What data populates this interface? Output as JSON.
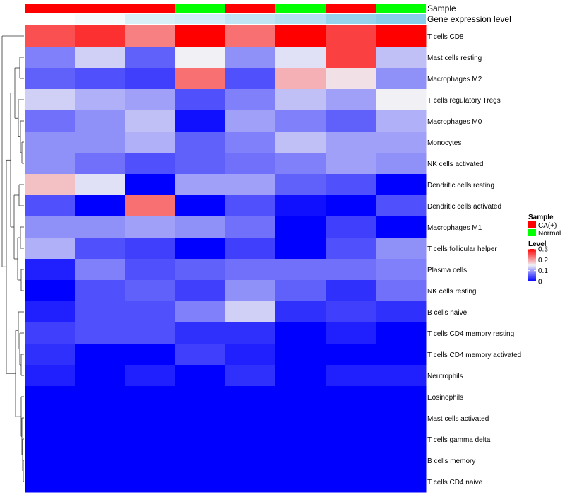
{
  "chart_data": {
    "type": "heatmap",
    "annotation_labels": [
      "Sample",
      "Gene expression level"
    ],
    "sample_groups": [
      "CA(+)",
      "CA(+)",
      "CA(+)",
      "Normal",
      "CA(+)",
      "Normal",
      "CA(+)",
      "Normal"
    ],
    "gene_expression_level": [
      0.0,
      0.04,
      0.15,
      0.18,
      0.25,
      0.3,
      0.42,
      0.48
    ],
    "rows": [
      "T cells CD8",
      "Mast cells resting",
      "Macrophages M2",
      "T cells regulatory  Tregs",
      "Macrophages M0",
      "Monocytes",
      "NK cells activated",
      "Dendritic cells resting",
      "Dendritic cells activated",
      "Macrophages M1",
      "T cells follicular helper",
      "Plasma cells",
      "NK cells resting",
      "B cells naive",
      "T cells CD4 memory resting",
      "T cells CD4 memory activated",
      "Neutrophils",
      "Eosinophils",
      "Mast cells activated",
      "T cells gamma delta",
      "B cells memory",
      "T cells CD4 naive"
    ],
    "values": [
      [
        0.25,
        0.27,
        0.22,
        0.3,
        0.23,
        0.3,
        0.26,
        0.3
      ],
      [
        0.08,
        0.13,
        0.06,
        0.15,
        0.09,
        0.14,
        0.26,
        0.12
      ],
      [
        0.06,
        0.05,
        0.04,
        0.23,
        0.05,
        0.19,
        0.16,
        0.09
      ],
      [
        0.13,
        0.11,
        0.1,
        0.05,
        0.08,
        0.12,
        0.1,
        0.15
      ],
      [
        0.07,
        0.09,
        0.12,
        0.01,
        0.1,
        0.08,
        0.06,
        0.11
      ],
      [
        0.09,
        0.09,
        0.11,
        0.06,
        0.08,
        0.12,
        0.1,
        0.1
      ],
      [
        0.09,
        0.07,
        0.05,
        0.06,
        0.07,
        0.08,
        0.1,
        0.09
      ],
      [
        0.18,
        0.14,
        0.0,
        0.1,
        0.1,
        0.06,
        0.05,
        0.0
      ],
      [
        0.05,
        0.0,
        0.23,
        0.0,
        0.05,
        0.01,
        0.0,
        0.05
      ],
      [
        0.09,
        0.09,
        0.1,
        0.09,
        0.07,
        0.0,
        0.04,
        0.0
      ],
      [
        0.11,
        0.05,
        0.04,
        0.0,
        0.04,
        0.0,
        0.05,
        0.09
      ],
      [
        0.02,
        0.08,
        0.05,
        0.06,
        0.07,
        0.07,
        0.07,
        0.08
      ],
      [
        0.0,
        0.05,
        0.06,
        0.04,
        0.09,
        0.06,
        0.03,
        0.07
      ],
      [
        0.02,
        0.05,
        0.05,
        0.08,
        0.13,
        0.03,
        0.04,
        0.03
      ],
      [
        0.04,
        0.05,
        0.05,
        0.03,
        0.03,
        0.0,
        0.02,
        0.0
      ],
      [
        0.03,
        0.0,
        0.0,
        0.04,
        0.02,
        0.0,
        0.0,
        0.0
      ],
      [
        0.02,
        0.0,
        0.02,
        0.0,
        0.03,
        0.0,
        0.02,
        0.02
      ],
      [
        0.0,
        0.0,
        0.0,
        0.0,
        0.0,
        0.0,
        0.0,
        0.0
      ],
      [
        0.0,
        0.0,
        0.0,
        0.0,
        0.0,
        0.0,
        0.0,
        0.0
      ],
      [
        0.0,
        0.0,
        0.0,
        0.0,
        0.0,
        0.0,
        0.0,
        0.0
      ],
      [
        0.0,
        0.0,
        0.0,
        0.0,
        0.0,
        0.0,
        0.0,
        0.0
      ],
      [
        0.0,
        0.0,
        0.0,
        0.0,
        0.0,
        0.0,
        0.0,
        0.0
      ]
    ],
    "color_scale": {
      "min": 0,
      "mid": 0.15,
      "max": 0.3,
      "low": "#0000FF",
      "mid_color": "#F0F0F5",
      "high": "#FF0000"
    },
    "annotation_colors": {
      "sample": {
        "CA(+)": "#FF0000",
        "Normal": "#00FF00"
      },
      "gene_low": "#FFFFFF",
      "gene_high": "#87CEEB"
    },
    "legend": {
      "sample_title": "Sample",
      "sample_items": [
        "CA(+)",
        "Normal"
      ],
      "level_title": "Level",
      "level_ticks": [
        "0.3",
        "0.2",
        "0.1",
        "0"
      ],
      "level_tick_values": [
        0.3,
        0.2,
        0.1,
        0.0
      ],
      "placement": "right"
    }
  }
}
